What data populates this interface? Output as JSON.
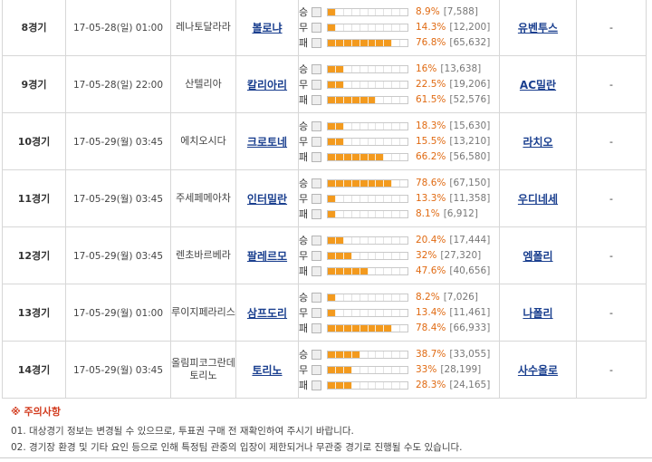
{
  "games": [
    {
      "no": "8경기",
      "date": "17-05-28(일) 01:00",
      "stadium": "레나토달라라",
      "home": "볼로냐",
      "away": "유벤투스",
      "result": "-",
      "votes": [
        {
          "label": "승",
          "pct_text": "8.9%",
          "count": "[7,588]",
          "pct": 8.9
        },
        {
          "label": "무",
          "pct_text": "14.3%",
          "count": "[12,200]",
          "pct": 14.3
        },
        {
          "label": "패",
          "pct_text": "76.8%",
          "count": "[65,632]",
          "pct": 76.8
        }
      ]
    },
    {
      "no": "9경기",
      "date": "17-05-28(일) 22:00",
      "stadium": "산텔리아",
      "home": "칼리아리",
      "away": "AC밀란",
      "result": "-",
      "votes": [
        {
          "label": "승",
          "pct_text": "16%",
          "count": "[13,638]",
          "pct": 16
        },
        {
          "label": "무",
          "pct_text": "22.5%",
          "count": "[19,206]",
          "pct": 22.5
        },
        {
          "label": "패",
          "pct_text": "61.5%",
          "count": "[52,576]",
          "pct": 61.5
        }
      ]
    },
    {
      "no": "10경기",
      "date": "17-05-29(월) 03:45",
      "stadium": "에치오시다",
      "home": "크로토네",
      "away": "라치오",
      "result": "-",
      "votes": [
        {
          "label": "승",
          "pct_text": "18.3%",
          "count": "[15,630]",
          "pct": 18.3
        },
        {
          "label": "무",
          "pct_text": "15.5%",
          "count": "[13,210]",
          "pct": 15.5
        },
        {
          "label": "패",
          "pct_text": "66.2%",
          "count": "[56,580]",
          "pct": 66.2
        }
      ]
    },
    {
      "no": "11경기",
      "date": "17-05-29(월) 03:45",
      "stadium": "주세페메아차",
      "home": "인터밀란",
      "away": "우디네세",
      "result": "-",
      "votes": [
        {
          "label": "승",
          "pct_text": "78.6%",
          "count": "[67,150]",
          "pct": 78.6
        },
        {
          "label": "무",
          "pct_text": "13.3%",
          "count": "[11,358]",
          "pct": 13.3
        },
        {
          "label": "패",
          "pct_text": "8.1%",
          "count": "[6,912]",
          "pct": 8.1
        }
      ]
    },
    {
      "no": "12경기",
      "date": "17-05-29(월) 03:45",
      "stadium": "렌초바르베라",
      "home": "팔레르모",
      "away": "엠폴리",
      "result": "-",
      "votes": [
        {
          "label": "승",
          "pct_text": "20.4%",
          "count": "[17,444]",
          "pct": 20.4
        },
        {
          "label": "무",
          "pct_text": "32%",
          "count": "[27,320]",
          "pct": 32
        },
        {
          "label": "패",
          "pct_text": "47.6%",
          "count": "[40,656]",
          "pct": 47.6
        }
      ]
    },
    {
      "no": "13경기",
      "date": "17-05-29(월) 01:00",
      "stadium": "루이지페라리스",
      "home": "삼프도리",
      "away": "나폴리",
      "result": "-",
      "votes": [
        {
          "label": "승",
          "pct_text": "8.2%",
          "count": "[7,026]",
          "pct": 8.2
        },
        {
          "label": "무",
          "pct_text": "13.4%",
          "count": "[11,461]",
          "pct": 13.4
        },
        {
          "label": "패",
          "pct_text": "78.4%",
          "count": "[66,933]",
          "pct": 78.4
        }
      ]
    },
    {
      "no": "14경기",
      "date": "17-05-29(월) 03:45",
      "stadium": "올림피코그란데토리노",
      "home": "토리노",
      "away": "사수올로",
      "result": "-",
      "votes": [
        {
          "label": "승",
          "pct_text": "38.7%",
          "count": "[33,055]",
          "pct": 38.7
        },
        {
          "label": "무",
          "pct_text": "33%",
          "count": "[28,199]",
          "pct": 33
        },
        {
          "label": "패",
          "pct_text": "28.3%",
          "count": "[24,165]",
          "pct": 28.3
        }
      ]
    }
  ],
  "notice": {
    "title": "※ 주의사항",
    "lines": [
      "01. 대상경기 정보는 변경될 수 있으므로, 투표권 구매 전 재확인하여 주시기 바랍니다.",
      "02. 경기장 환경 및 기타 요인 등으로 인해 특정팀 관중의 입장이 제한되거나 무관중 경기로 진행될 수도 있습니다."
    ]
  },
  "colors": {
    "bar_fill": "#f39a1e",
    "percent_text": "#e06a12",
    "team_link": "#1a3f8f",
    "notice_title": "#d23b1e"
  }
}
